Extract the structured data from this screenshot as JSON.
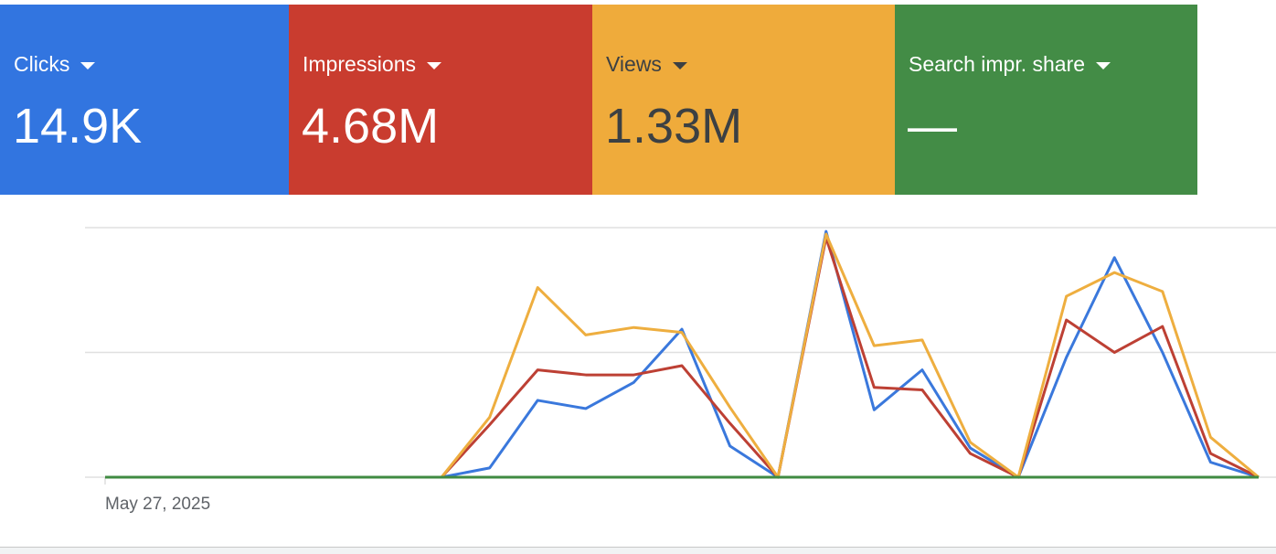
{
  "chart_data": {
    "type": "line",
    "categories": [
      "May 27, 2025",
      null,
      null,
      null,
      null,
      null,
      null,
      null,
      null,
      null,
      null,
      null,
      null,
      null,
      null,
      null,
      null,
      null,
      null,
      null,
      null,
      null,
      null,
      null,
      null
    ],
    "series": [
      {
        "name": "Clicks",
        "total": "14.9K",
        "color": "#3a78dc",
        "card_color": "#3275e0",
        "values": [
          0,
          0,
          0,
          0,
          0,
          0,
          0,
          0,
          3.7,
          30.8,
          27.5,
          38,
          59.3,
          12.5,
          0,
          98.5,
          27,
          43,
          11.7,
          0,
          48,
          88,
          50,
          6,
          0
        ]
      },
      {
        "name": "Impressions",
        "total": "4.68M",
        "color": "#bd4034",
        "card_color": "#c93c2f",
        "values": [
          0,
          0,
          0,
          0,
          0,
          0,
          0,
          0,
          21,
          43,
          41,
          41,
          44.7,
          21.6,
          0,
          96,
          36,
          35,
          9.5,
          0,
          63,
          50,
          60.4,
          9.5,
          0
        ]
      },
      {
        "name": "Views",
        "total": "1.33M",
        "color": "#eeae3f",
        "card_color": "#efab3b",
        "values": [
          0,
          0,
          0,
          0,
          0,
          0,
          0,
          0,
          24,
          76,
          57,
          60,
          58,
          28,
          0,
          97.4,
          52.7,
          55,
          14,
          0,
          72.5,
          82,
          74.4,
          16,
          0
        ]
      },
      {
        "name": "Search impr. share",
        "total": "—",
        "color": "#3f8b42",
        "card_color": "#438c46",
        "values": [
          0,
          0,
          0,
          0,
          0,
          0,
          0,
          0,
          0,
          0,
          0,
          0,
          0,
          0,
          0,
          0,
          0,
          0,
          0,
          0,
          0,
          0,
          0,
          0,
          0
        ]
      }
    ],
    "ylim": [
      0,
      100
    ],
    "gridlines": [
      0,
      50,
      100
    ]
  }
}
